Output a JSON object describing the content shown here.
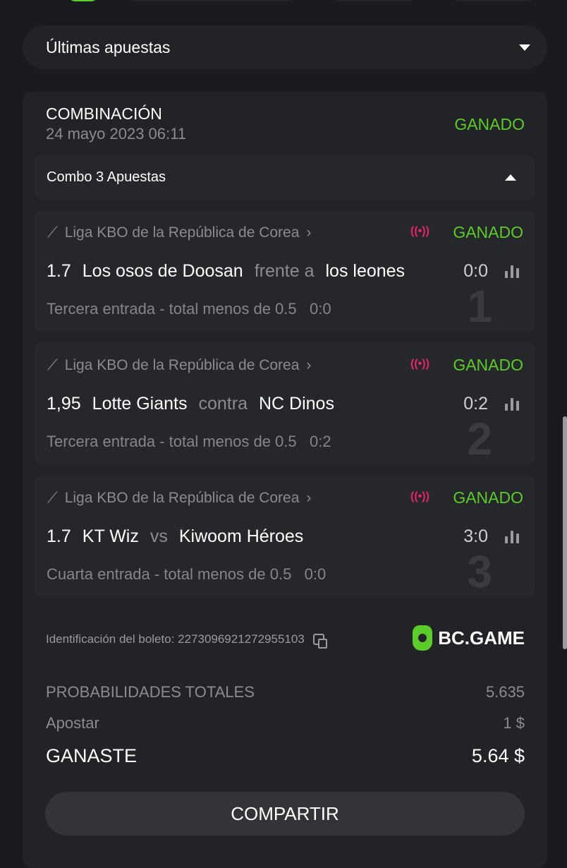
{
  "dropdown": {
    "label": "Últimas apuestas"
  },
  "bet": {
    "type": "COMBINACIÓN",
    "date": "24 mayo 2023 06:11",
    "status": "GANADO",
    "combo_label": "Combo 3 Apuestas",
    "legs": [
      {
        "number": "1",
        "league": "Liga KBO de la República de Corea",
        "status": "GANADO",
        "odds": "1.7",
        "home": "Los osos de Doosan",
        "connector": "frente a",
        "away": "los leones",
        "score": "0:0",
        "market": "Tercera entrada - total menos de 0.5",
        "market_score": "0:0"
      },
      {
        "number": "2",
        "league": "Liga KBO de la República de Corea",
        "status": "GANADO",
        "odds": "1,95",
        "home": "Lotte Giants",
        "connector": "contra",
        "away": "NC Dinos",
        "score": "0:2",
        "market": "Tercera entrada - total menos de 0.5",
        "market_score": "0:2"
      },
      {
        "number": "3",
        "league": "Liga KBO de la República de Corea",
        "status": "GANADO",
        "odds": "1.7",
        "home": "KT Wiz",
        "connector": "vs",
        "away": "Kiwoom Héroes",
        "score": "3:0",
        "market": "Cuarta entrada - total menos de 0.5",
        "market_score": "0:0"
      }
    ],
    "ticket_label": "Identificación del boleto: 2273096921272955103",
    "brand": "BC.GAME",
    "total_odds_label": "PROBABILIDADES TOTALES",
    "total_odds": "5.635",
    "stake_label": "Apostar",
    "stake": "1 $",
    "won_label": "GANASTE",
    "won": "5.64 $",
    "share_label": "COMPARTIR"
  },
  "colors": {
    "win": "#5ccb2c",
    "live": "#e8246f",
    "background": "#1a1b1e"
  }
}
